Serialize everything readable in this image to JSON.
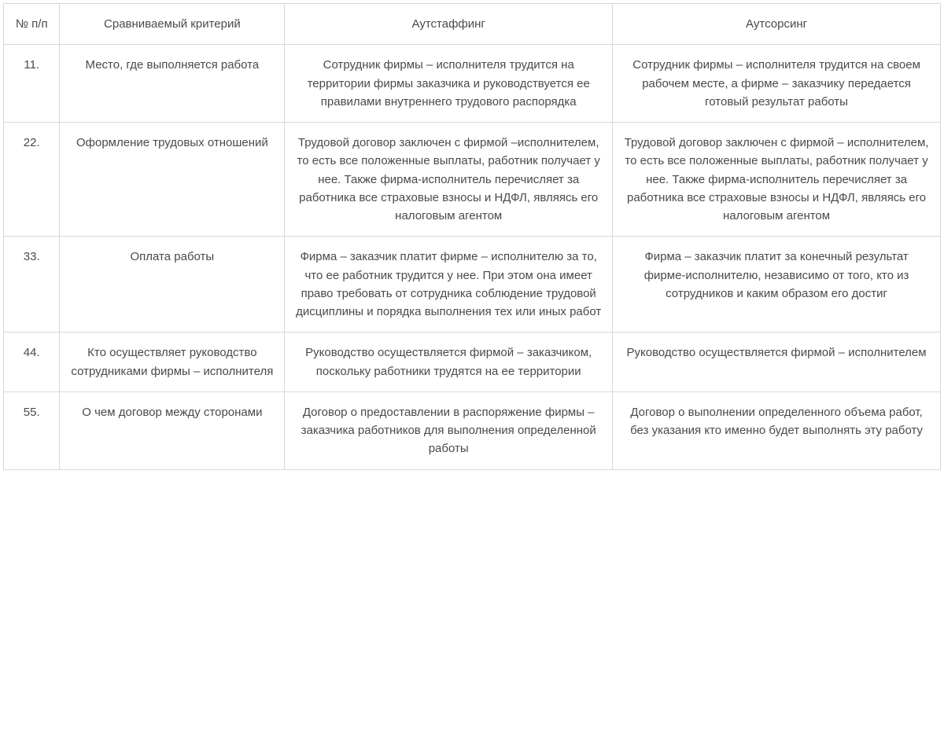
{
  "table": {
    "columns": [
      "№ п/п",
      "Сравниваемый критерий",
      "Аутстаффинг",
      "Аутсорсинг"
    ],
    "rows": [
      {
        "num": "11.",
        "criterion": "Место, где выполняется работа",
        "outstaffing": "Сотрудник фирмы – исполнителя трудится на территории фирмы заказчика и руководствуется ее правилами внутреннего трудового распорядка",
        "outsourcing": "Сотрудник фирмы – исполнителя трудится на своем рабочем месте, а фирме – заказчику передается готовый результат работы"
      },
      {
        "num": "22.",
        "criterion": "Оформление трудовых отношений",
        "outstaffing": "Трудовой договор заключен с фирмой –исполнителем, то есть все положенные выплаты, работник получает у нее. Также фирма-исполнитель перечисляет за работника все страховые взносы и НДФЛ, являясь его налоговым агентом",
        "outsourcing": "Трудовой договор заключен с фирмой – исполнителем, то есть все положенные выплаты, работник получает у нее. Также фирма-исполнитель перечисляет за работника все страховые взносы и НДФЛ, являясь его налоговым агентом"
      },
      {
        "num": "33.",
        "criterion": "Оплата работы",
        "outstaffing": "Фирма – заказчик платит фирме – исполнителю за то, что ее работник трудится у нее. При этом она имеет право требовать от сотрудника соблюдение трудовой дисциплины и порядка выполнения тех или иных работ",
        "outsourcing": "Фирма – заказчик платит за конечный результат фирме-исполнителю, независимо от того, кто из сотрудников и каким образом его достиг"
      },
      {
        "num": "44.",
        "criterion": "Кто осуществляет руководство сотрудниками фирмы – исполнителя",
        "outstaffing": "Руководство осуществляется фирмой – заказчиком, поскольку работники трудятся на ее территории",
        "outsourcing": "Руководство осуществляется фирмой – исполнителем"
      },
      {
        "num": "55.",
        "criterion": "О чем договор между сторонами",
        "outstaffing": "Договор о предоставлении в распоряжение фирмы – заказчика работников для выполнения определенной работы",
        "outsourcing": "Договор о выполнении определенного объема работ, без указания кто именно будет выполнять эту работу"
      }
    ]
  }
}
